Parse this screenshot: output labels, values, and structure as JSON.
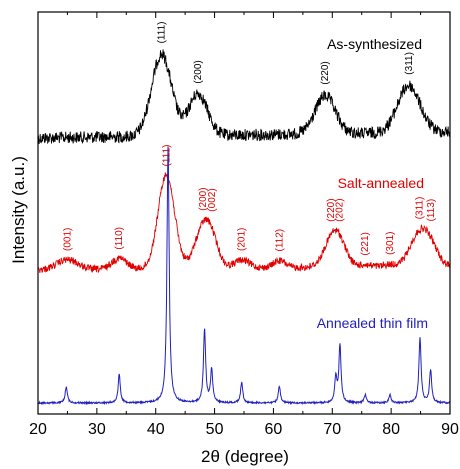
{
  "chart_data": {
    "type": "line",
    "title": "",
    "xlabel": "2θ (degree)",
    "ylabel": "Intensity (a.u.)",
    "xlim": [
      20,
      90
    ],
    "x_ticks": [
      20,
      30,
      40,
      50,
      60,
      70,
      80,
      90
    ],
    "grid": false,
    "y_ticks_shown": false,
    "series": [
      {
        "name": "As-synthesized",
        "color": "#000000",
        "peaks": [
          {
            "x": 41.0,
            "label": "(111)"
          },
          {
            "x": 47.2,
            "label": "(200)"
          },
          {
            "x": 68.8,
            "label": "(220)"
          },
          {
            "x": 83.0,
            "label": "(311)"
          }
        ]
      },
      {
        "name": "Salt-annealed",
        "color": "#e00000",
        "peaks": [
          {
            "x": 25.0,
            "label": "(001)"
          },
          {
            "x": 33.8,
            "label": "(110)"
          },
          {
            "x": 41.8,
            "label": "(111)"
          },
          {
            "x": 48.0,
            "label": "(200)"
          },
          {
            "x": 49.6,
            "label": "(002)"
          },
          {
            "x": 54.6,
            "label": "(201)"
          },
          {
            "x": 61.0,
            "label": "(112)"
          },
          {
            "x": 69.8,
            "label": "(220)"
          },
          {
            "x": 71.2,
            "label": "(202)"
          },
          {
            "x": 75.6,
            "label": "(221)"
          },
          {
            "x": 79.8,
            "label": "(301)"
          },
          {
            "x": 84.8,
            "label": "(311)"
          },
          {
            "x": 86.8,
            "label": "(113)"
          }
        ]
      },
      {
        "name": "Annealed thin film",
        "color": "#2020c0",
        "peaks": [
          {
            "x": 24.8,
            "height": 0.04
          },
          {
            "x": 33.8,
            "height": 0.07
          },
          {
            "x": 42.1,
            "height": 0.63
          },
          {
            "x": 48.3,
            "height": 0.18
          },
          {
            "x": 49.5,
            "height": 0.08
          },
          {
            "x": 54.6,
            "height": 0.05
          },
          {
            "x": 61.0,
            "height": 0.04
          },
          {
            "x": 70.6,
            "height": 0.06
          },
          {
            "x": 71.3,
            "height": 0.14
          },
          {
            "x": 75.6,
            "height": 0.02
          },
          {
            "x": 79.8,
            "height": 0.02
          },
          {
            "x": 84.9,
            "height": 0.16
          },
          {
            "x": 86.7,
            "height": 0.08
          }
        ]
      }
    ]
  }
}
